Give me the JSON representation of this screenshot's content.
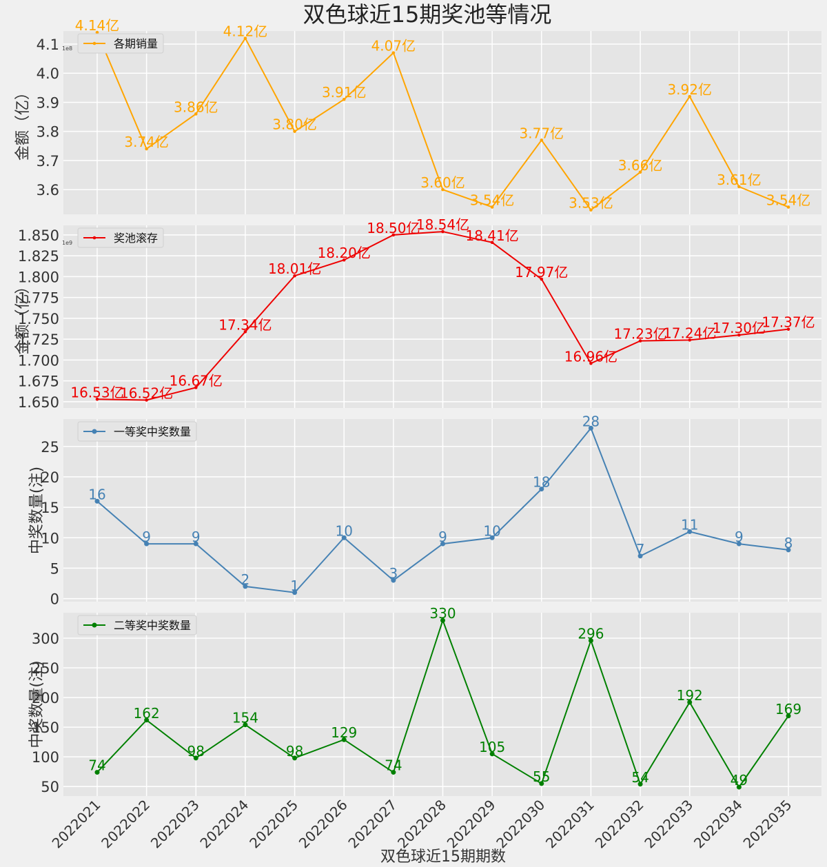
{
  "figure": {
    "title": "双色球近15期奖池等情况",
    "xlabel": "双色球近15期期数"
  },
  "colors": {
    "background": "#f0f0f0",
    "axes_face": "#e5e5e5",
    "grid": "#ffffff",
    "text": "#222222"
  },
  "chart_data": [
    {
      "type": "line",
      "series_name": "各期销量",
      "color": "#ffa500",
      "ylabel": "金额（亿）",
      "offset_text": "1e8",
      "ylim": [
        3.515,
        4.145
      ],
      "yticks": [
        3.6,
        3.7,
        3.8,
        3.9,
        4.0,
        4.1
      ],
      "ytick_labels": [
        "3.6",
        "3.7",
        "3.8",
        "3.9",
        "4.0",
        "4.1"
      ],
      "x": [
        "2022021",
        "2022022",
        "2022023",
        "2022024",
        "2022025",
        "2022026",
        "2022027",
        "2022028",
        "2022029",
        "2022030",
        "2022031",
        "2022032",
        "2022033",
        "2022034",
        "2022035"
      ],
      "values": [
        4.14,
        3.74,
        3.86,
        4.12,
        3.8,
        3.91,
        4.07,
        3.6,
        3.54,
        3.77,
        3.53,
        3.66,
        3.92,
        3.61,
        3.54
      ],
      "data_labels": [
        "4.14亿",
        "3.74亿",
        "3.86亿",
        "4.12亿",
        "3.80亿",
        "3.91亿",
        "4.07亿",
        "3.60亿",
        "3.54亿",
        "3.77亿",
        "3.53亿",
        "3.66亿",
        "3.92亿",
        "3.61亿",
        "3.54亿"
      ],
      "legend_position": "top-left",
      "grid": true,
      "marker": "small"
    },
    {
      "type": "line",
      "series_name": "奖池滚存",
      "color": "#ee0000",
      "ylabel": "金额（亿）",
      "offset_text": "1e9",
      "ylim": [
        1.6425,
        1.8615
      ],
      "yticks": [
        1.65,
        1.675,
        1.7,
        1.725,
        1.75,
        1.775,
        1.8,
        1.825,
        1.85
      ],
      "ytick_labels": [
        "1.650",
        "1.675",
        "1.700",
        "1.725",
        "1.750",
        "1.775",
        "1.800",
        "1.825",
        "1.850"
      ],
      "x": [
        "2022021",
        "2022022",
        "2022023",
        "2022024",
        "2022025",
        "2022026",
        "2022027",
        "2022028",
        "2022029",
        "2022030",
        "2022031",
        "2022032",
        "2022033",
        "2022034",
        "2022035"
      ],
      "values": [
        1.653,
        1.652,
        1.667,
        1.734,
        1.801,
        1.82,
        1.85,
        1.854,
        1.841,
        1.797,
        1.696,
        1.723,
        1.724,
        1.73,
        1.737
      ],
      "data_labels": [
        "16.53亿",
        "16.52亿",
        "16.67亿",
        "17.34亿",
        "18.01亿",
        "18.20亿",
        "18.50亿",
        "18.54亿",
        "18.41亿",
        "17.97亿",
        "16.96亿",
        "17.23亿",
        "17.24亿",
        "17.30亿",
        "17.37亿"
      ],
      "legend_position": "top-left",
      "grid": true,
      "marker": "small"
    },
    {
      "type": "line",
      "series_name": "一等奖中奖数量",
      "color": "#4682b4",
      "ylabel": "中奖数量(注)",
      "offset_text": "",
      "ylim": [
        -0.5,
        29.5
      ],
      "yticks": [
        0,
        5,
        10,
        15,
        20,
        25
      ],
      "ytick_labels": [
        "0",
        "5",
        "10",
        "15",
        "20",
        "25"
      ],
      "x": [
        "2022021",
        "2022022",
        "2022023",
        "2022024",
        "2022025",
        "2022026",
        "2022027",
        "2022028",
        "2022029",
        "2022030",
        "2022031",
        "2022032",
        "2022033",
        "2022034",
        "2022035"
      ],
      "values": [
        16,
        9,
        9,
        2,
        1,
        10,
        3,
        9,
        10,
        18,
        28,
        7,
        11,
        9,
        8
      ],
      "data_labels": [
        "16",
        "9",
        "9",
        "2",
        "1",
        "10",
        "3",
        "9",
        "10",
        "18",
        "28",
        "7",
        "11",
        "9",
        "8"
      ],
      "legend_position": "top-left",
      "grid": true,
      "marker": "dot"
    },
    {
      "type": "line",
      "series_name": "二等奖中奖数量",
      "color": "#008000",
      "ylabel": "中奖数量(注)",
      "offset_text": "",
      "ylim": [
        34,
        343
      ],
      "yticks": [
        50,
        100,
        150,
        200,
        250,
        300
      ],
      "ytick_labels": [
        "50",
        "100",
        "150",
        "200",
        "250",
        "300"
      ],
      "x": [
        "2022021",
        "2022022",
        "2022023",
        "2022024",
        "2022025",
        "2022026",
        "2022027",
        "2022028",
        "2022029",
        "2022030",
        "2022031",
        "2022032",
        "2022033",
        "2022034",
        "2022035"
      ],
      "values": [
        74,
        162,
        98,
        154,
        98,
        129,
        74,
        330,
        105,
        55,
        296,
        54,
        192,
        49,
        169
      ],
      "data_labels": [
        "74",
        "162",
        "98",
        "154",
        "98",
        "129",
        "74",
        "330",
        "105",
        "55",
        "296",
        "54",
        "192",
        "49",
        "169"
      ],
      "legend_position": "top-left",
      "grid": true,
      "marker": "dot",
      "xtick_labels": [
        "2022021",
        "2022022",
        "2022023",
        "2022024",
        "2022025",
        "2022026",
        "2022027",
        "2022028",
        "2022029",
        "2022030",
        "2022031",
        "2022032",
        "2022033",
        "2022034",
        "2022035"
      ]
    }
  ]
}
